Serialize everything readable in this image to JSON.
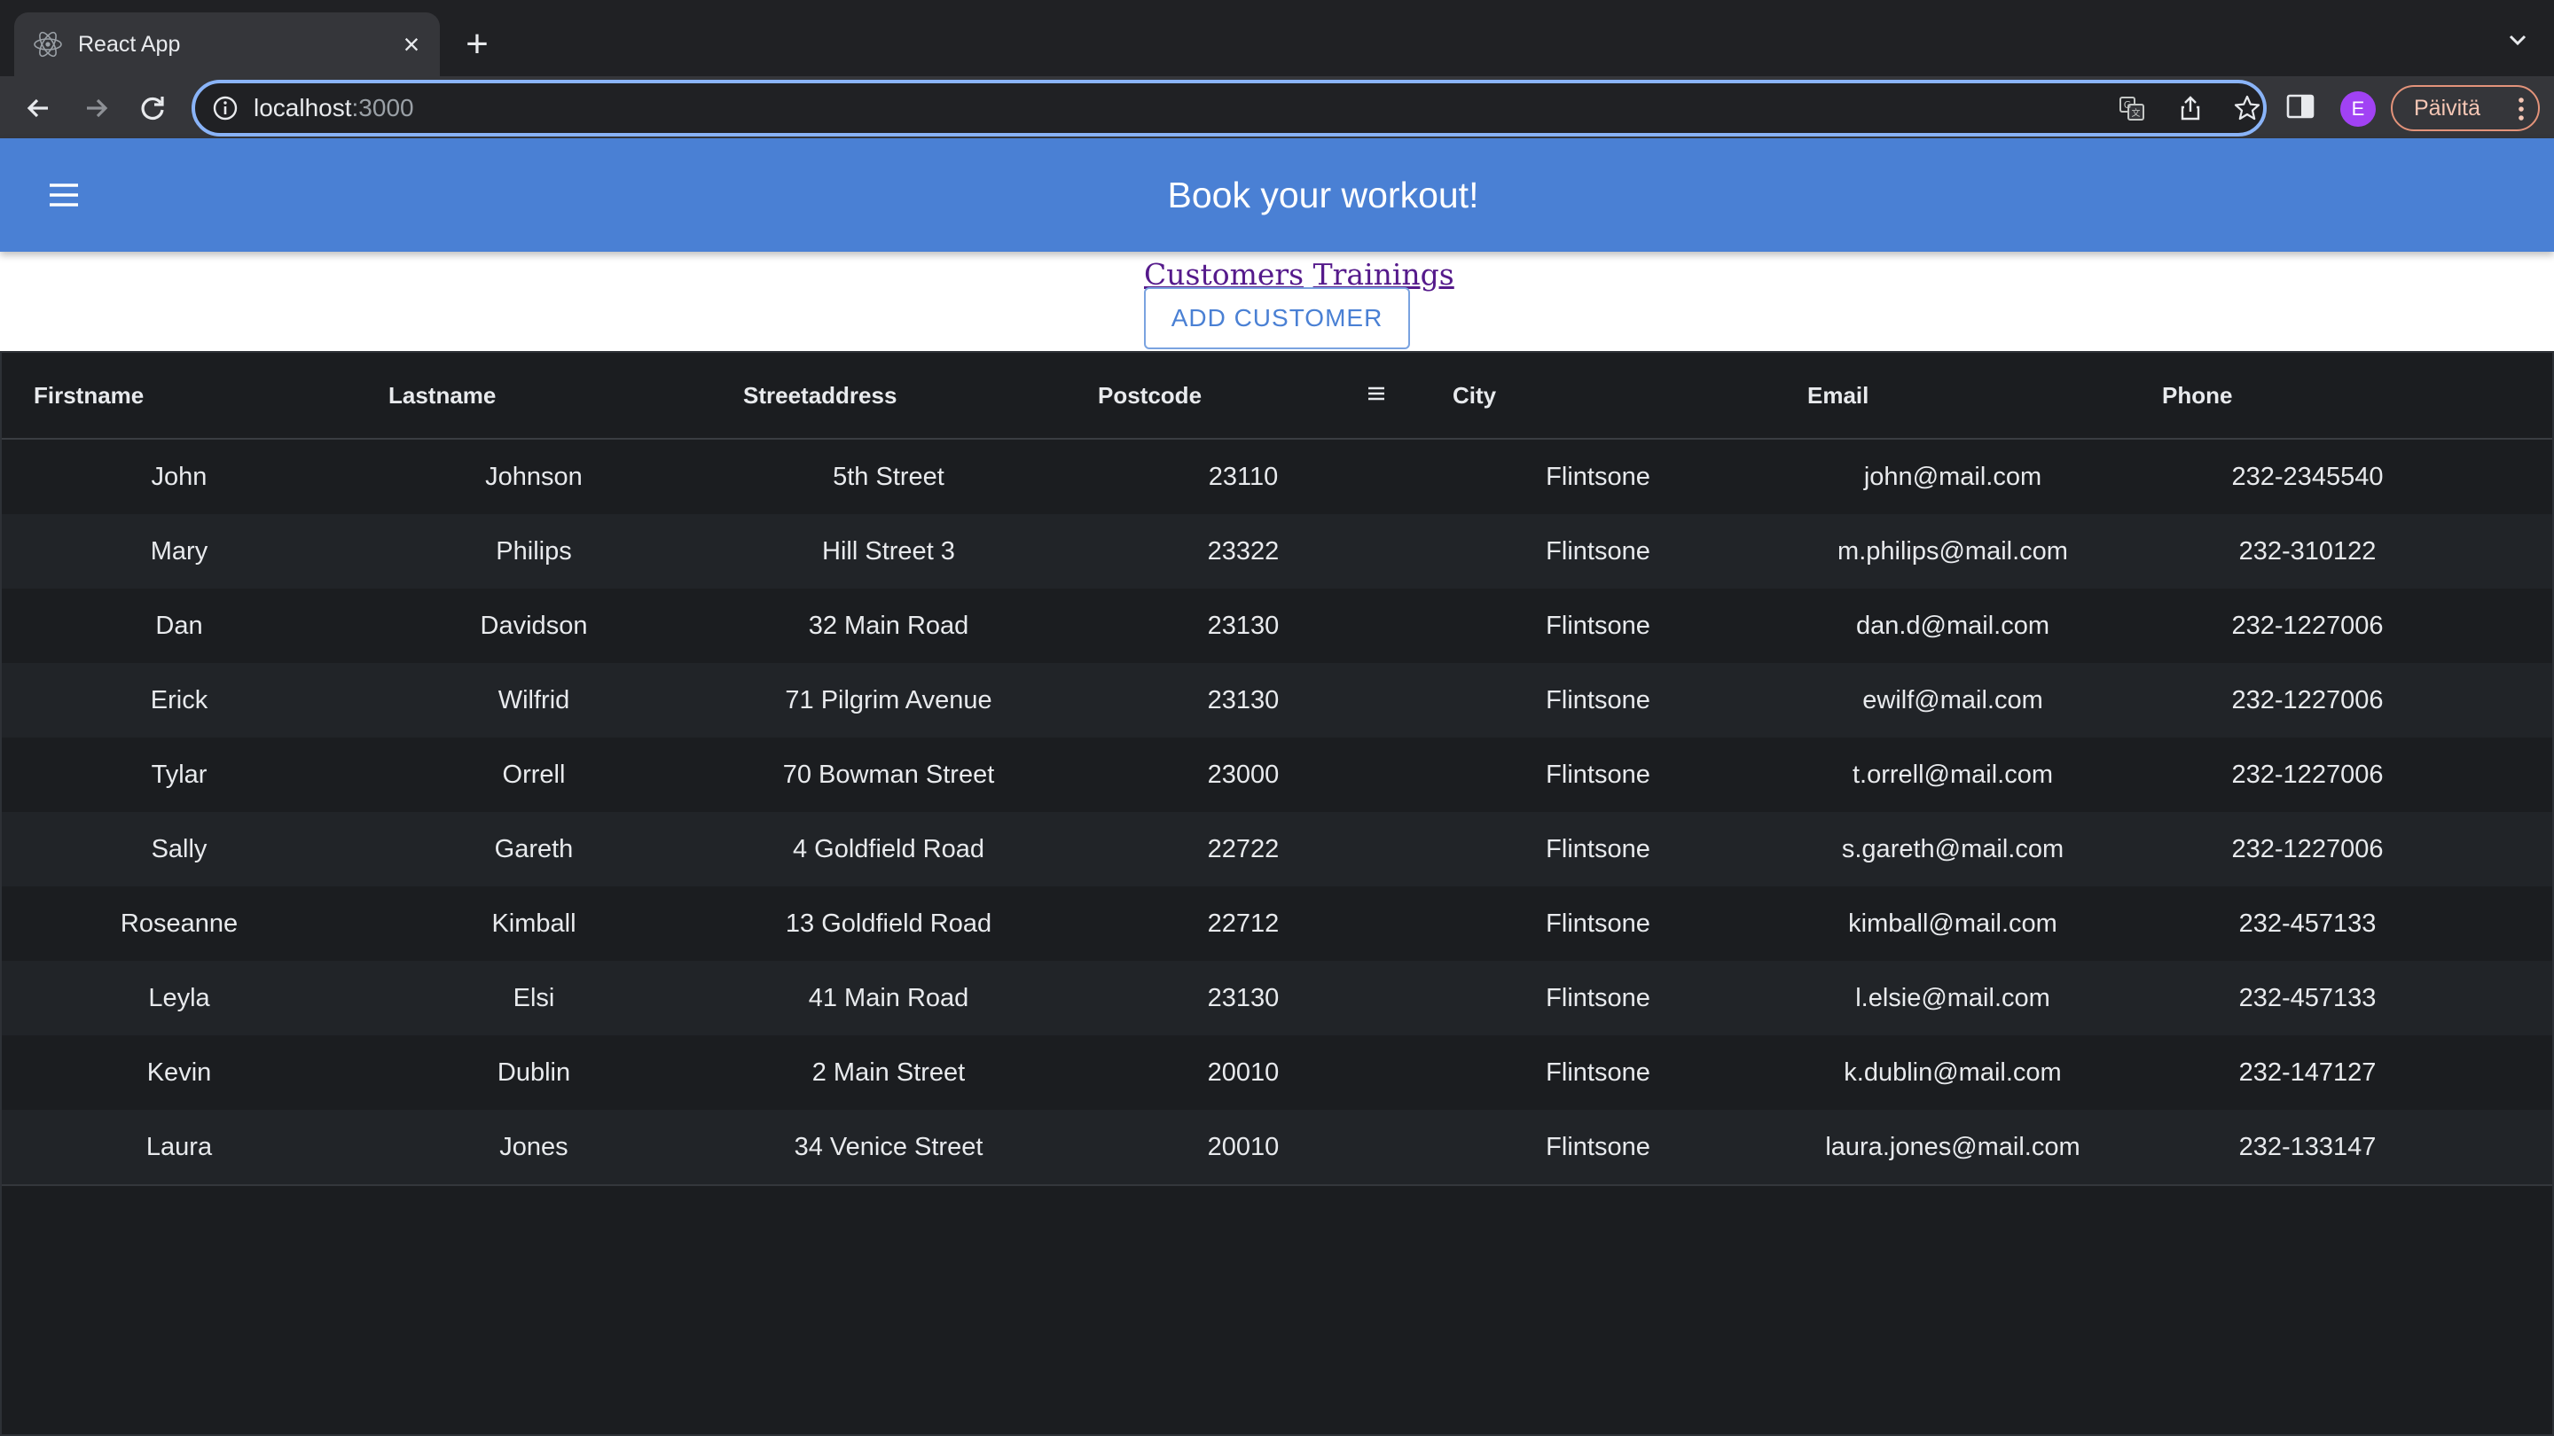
{
  "browser": {
    "tab_title": "React App",
    "url_host": "localhost",
    "url_port": ":3000",
    "profile_initial": "E",
    "update_label": "Päivitä",
    "accent_color": "#8ab4f8"
  },
  "app": {
    "title": "Book your workout!",
    "nav": {
      "customers": "Customers",
      "trainings": "Trainings"
    },
    "add_button": "ADD CUSTOMER",
    "brand_color": "#4a80d4"
  },
  "grid": {
    "columns": [
      "Firstname",
      "Lastname",
      "Streetaddress",
      "Postcode",
      "City",
      "Email",
      "Phone"
    ],
    "rows": [
      [
        "John",
        "Johnson",
        "5th Street",
        "23110",
        "Flintsone",
        "john@mail.com",
        "232-2345540"
      ],
      [
        "Mary",
        "Philips",
        "Hill Street 3",
        "23322",
        "Flintsone",
        "m.philips@mail.com",
        "232-310122"
      ],
      [
        "Dan",
        "Davidson",
        "32 Main Road",
        "23130",
        "Flintsone",
        "dan.d@mail.com",
        "232-1227006"
      ],
      [
        "Erick",
        "Wilfrid",
        "71 Pilgrim Avenue",
        "23130",
        "Flintsone",
        "ewilf@mail.com",
        "232-1227006"
      ],
      [
        "Tylar",
        "Orrell",
        "70 Bowman Street",
        "23000",
        "Flintsone",
        "t.orrell@mail.com",
        "232-1227006"
      ],
      [
        "Sally",
        "Gareth",
        "4 Goldfield Road",
        "22722",
        "Flintsone",
        "s.gareth@mail.com",
        "232-1227006"
      ],
      [
        "Roseanne",
        "Kimball",
        "13 Goldfield Road",
        "22712",
        "Flintsone",
        "kimball@mail.com",
        "232-457133"
      ],
      [
        "Leyla",
        "Elsi",
        "41 Main Road",
        "23130",
        "Flintsone",
        "l.elsie@mail.com",
        "232-457133"
      ],
      [
        "Kevin",
        "Dublin",
        "2 Main Street",
        "20010",
        "Flintsone",
        "k.dublin@mail.com",
        "232-147127"
      ],
      [
        "Laura",
        "Jones",
        "34 Venice Street",
        "20010",
        "Flintsone",
        "laura.jones@mail.com",
        "232-133147"
      ]
    ]
  }
}
